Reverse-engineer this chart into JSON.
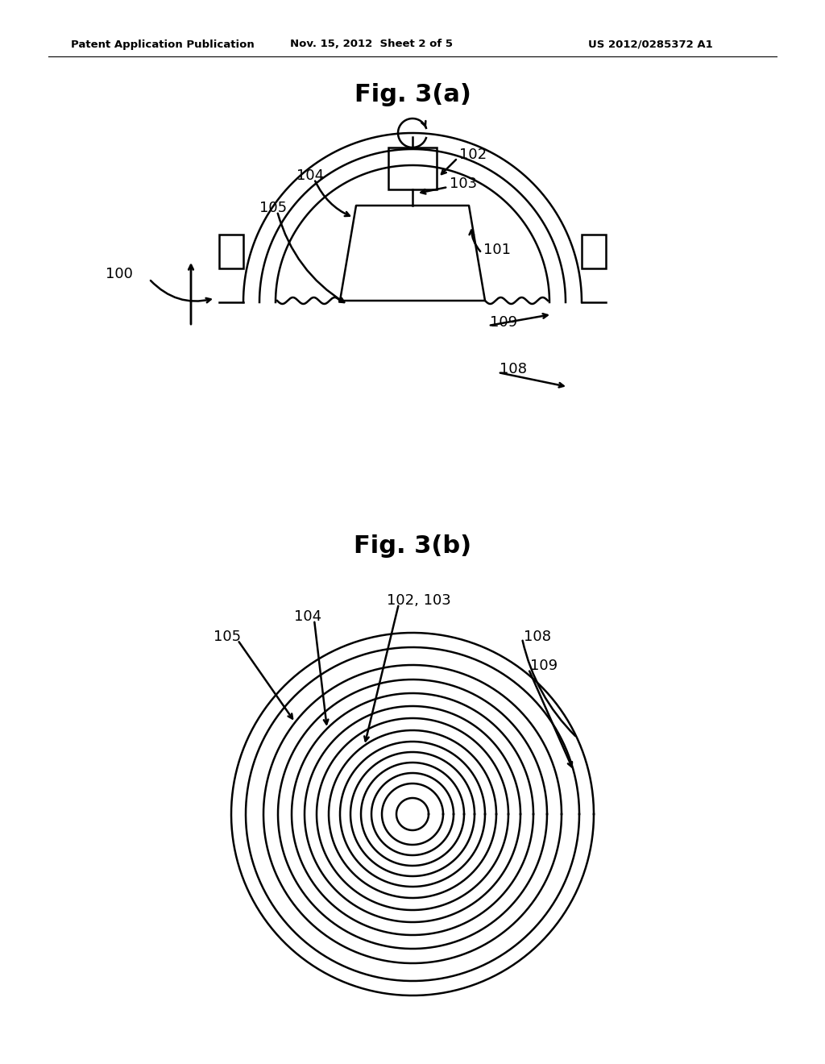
{
  "bg_color": "#ffffff",
  "line_color": "#000000",
  "header_left": "Patent Application Publication",
  "header_center": "Nov. 15, 2012  Sheet 2 of 5",
  "header_right": "US 2012/0285372 A1",
  "fig3a_title": "Fig. 3(a)",
  "fig3b_title": "Fig. 3(b)"
}
